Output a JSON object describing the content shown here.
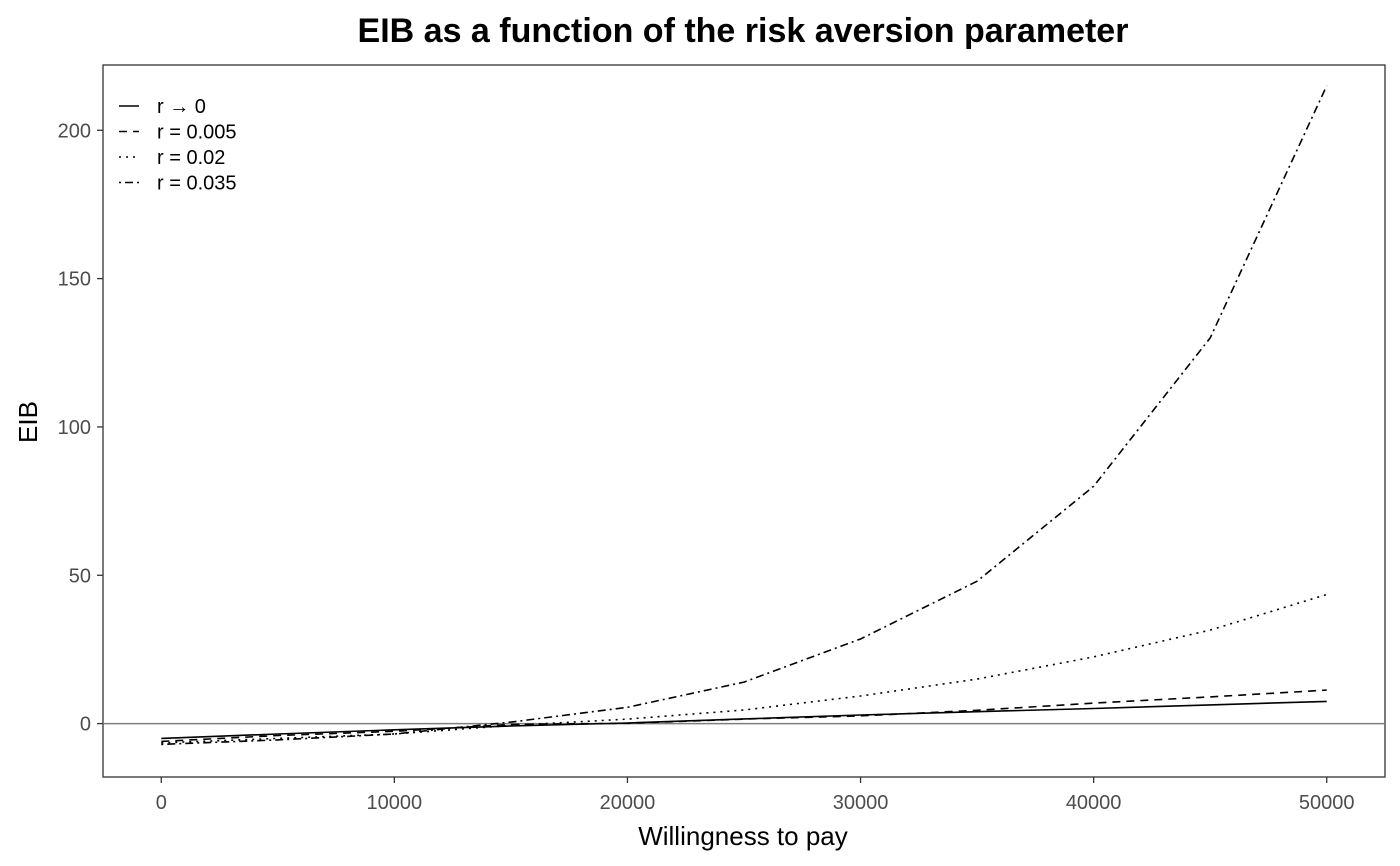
{
  "chart_data": {
    "type": "line",
    "title": "EIB as a function of the risk aversion parameter",
    "xlabel": "Willingness to pay",
    "ylabel": "EIB",
    "xlim": [
      -2500,
      52500
    ],
    "ylim": [
      -18,
      222
    ],
    "xticks": [
      0,
      10000,
      20000,
      30000,
      40000,
      50000
    ],
    "yticks": [
      0,
      50,
      100,
      150,
      200
    ],
    "hline": 0,
    "grid": false,
    "legend_position": "top-left",
    "x": [
      0,
      5000,
      10000,
      15000,
      20000,
      25000,
      30000,
      35000,
      40000,
      45000,
      50000
    ],
    "series": [
      {
        "name": "r → 0",
        "dash": "solid",
        "values": [
          -5,
          -3.5,
          -2.1,
          -0.8,
          0.2,
          1.6,
          2.9,
          4.0,
          5.1,
          6.3,
          7.5
        ]
      },
      {
        "name": "r = 0.005",
        "dash": "dashed",
        "values": [
          -6,
          -4.0,
          -2.6,
          -0.3,
          0.1,
          1.5,
          2.6,
          4.5,
          6.9,
          9.0,
          11.3
        ]
      },
      {
        "name": "r = 0.02",
        "dash": "dotted",
        "values": [
          -6.5,
          -5.0,
          -3.5,
          -0.6,
          1.5,
          4.6,
          9.3,
          15.0,
          22.5,
          31.5,
          43.5
        ]
      },
      {
        "name": "r = 0.035",
        "dash": "dotdash",
        "values": [
          -7,
          -5.5,
          -3.5,
          0.5,
          5.5,
          14.0,
          28.5,
          48.0,
          80.0,
          130.0,
          215.0
        ]
      }
    ]
  }
}
